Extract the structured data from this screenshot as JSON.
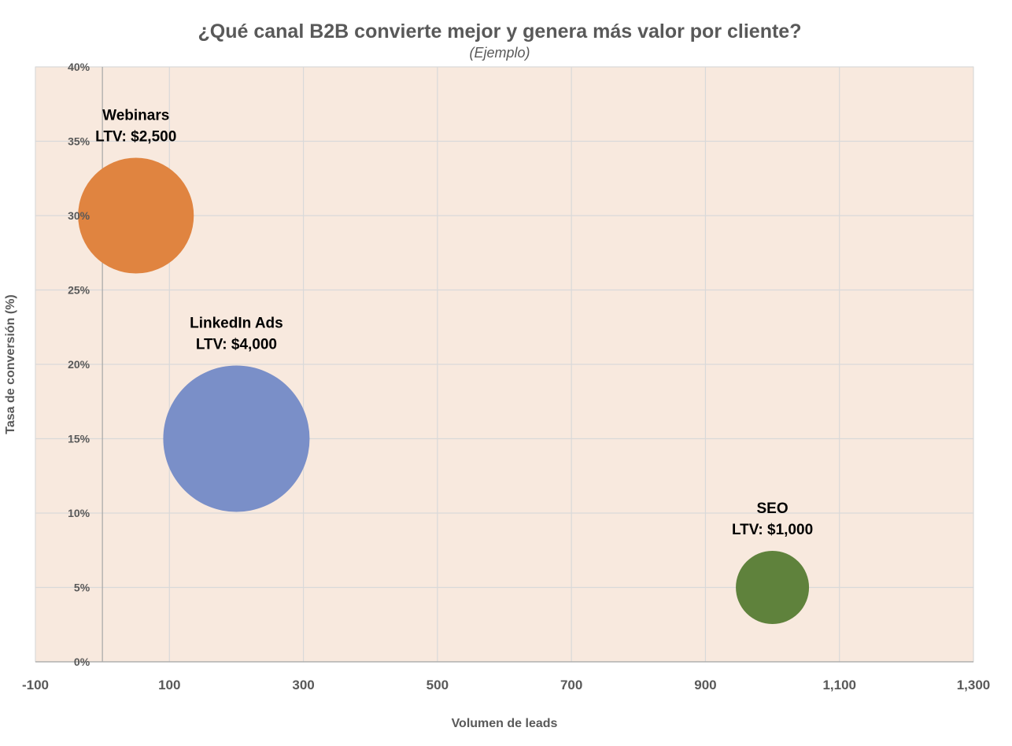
{
  "chart_data": {
    "type": "bubble",
    "title": "¿Qué canal B2B convierte mejor y genera más valor por cliente?",
    "subtitle": "(Ejemplo)",
    "xlabel": "Volumen de leads",
    "ylabel": "Tasa de conversión (%)",
    "xlim": [
      -100,
      1300
    ],
    "ylim": [
      0,
      40
    ],
    "x_ticks": [
      -100,
      100,
      300,
      500,
      700,
      900,
      1100,
      1300
    ],
    "x_tick_labels": [
      "-100",
      "100",
      "300",
      "500",
      "700",
      "900",
      "1,100",
      "1,300"
    ],
    "y_ticks": [
      0,
      5,
      10,
      15,
      20,
      25,
      30,
      35,
      40
    ],
    "y_tick_labels": [
      "0%",
      "5%",
      "10%",
      "15%",
      "20%",
      "25%",
      "30%",
      "35%",
      "40%"
    ],
    "grid": true,
    "background_color": "#f8e9de",
    "series": [
      {
        "name": "Webinars",
        "x": 50,
        "y": 30,
        "size": 2500,
        "ltv_label": "LTV: $2,500",
        "color": "#e08440"
      },
      {
        "name": "LinkedIn Ads",
        "x": 200,
        "y": 15,
        "size": 4000,
        "ltv_label": "LTV: $4,000",
        "color": "#7a8fc8"
      },
      {
        "name": "SEO",
        "x": 1000,
        "y": 5,
        "size": 1000,
        "ltv_label": "LTV: $1,000",
        "color": "#5f823c"
      }
    ]
  }
}
